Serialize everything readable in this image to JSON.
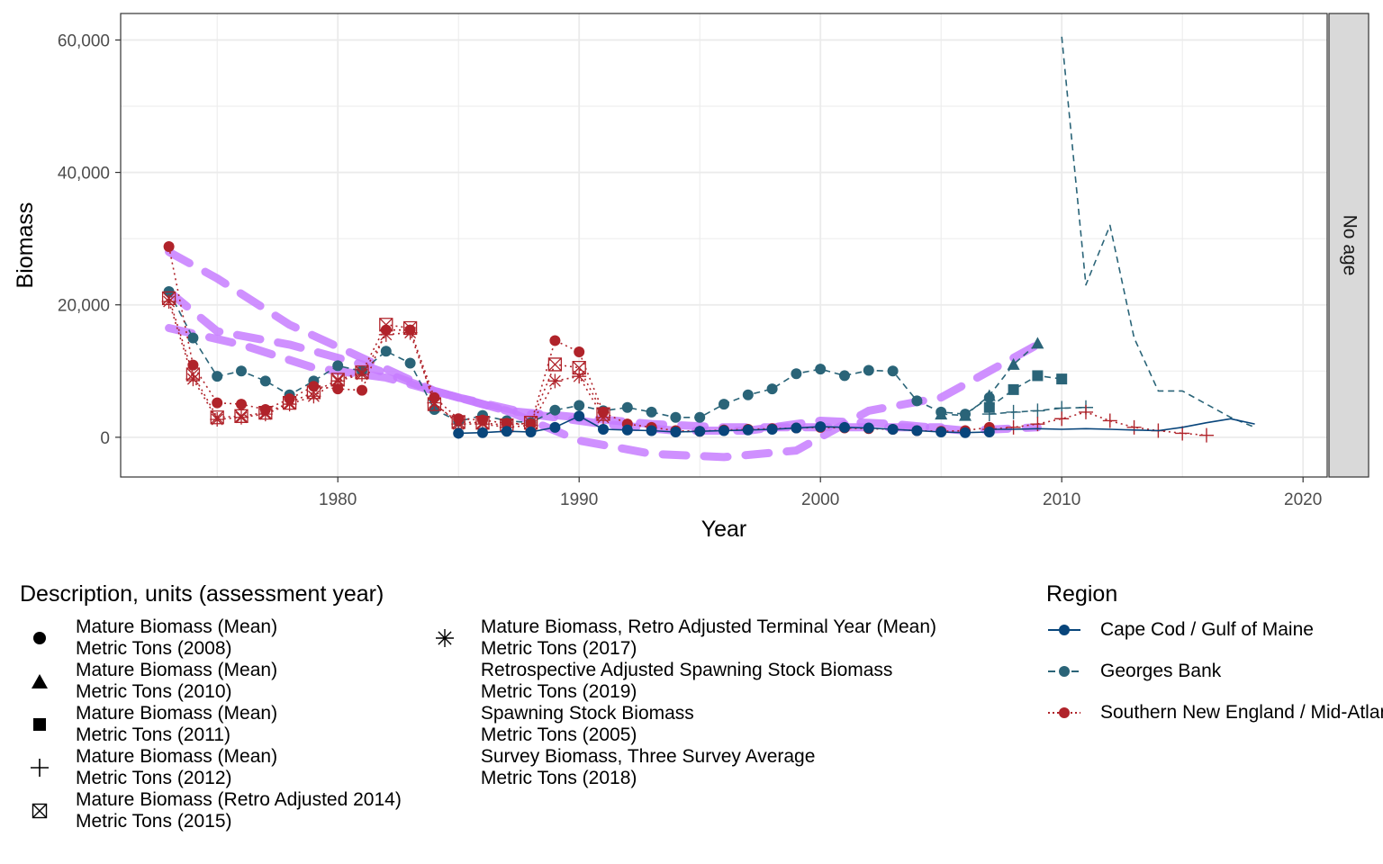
{
  "colors": {
    "cape_cod": "#08457b",
    "georges_bank": "#2a6478",
    "southern_ne": "#b0232a",
    "purple": "#c77cff",
    "purple_dark": "#7a3fbf",
    "grid": "#ebebeb",
    "strip_bg": "#d9d9d9"
  },
  "chart_data": {
    "type": "line",
    "xlabel": "Year",
    "ylabel": "Biomass",
    "xlim": [
      1971,
      2021
    ],
    "ylim": [
      -6000,
      64000
    ],
    "x_ticks": [
      1980,
      1990,
      2000,
      2010,
      2020
    ],
    "x_tick_labels": [
      "1980",
      "1990",
      "2000",
      "2010",
      "2020"
    ],
    "y_ticks": [
      0,
      20000,
      40000,
      60000
    ],
    "y_tick_labels": [
      "0",
      "20,000",
      "40,000",
      "60,000"
    ],
    "facet_label": "No age",
    "grid": true,
    "legend_position": "bottom",
    "series": [
      {
        "name": "Georges Bank",
        "description": "Mature Biomass (Mean) Metric Tons (2008)",
        "marker": "circle",
        "linestyle": "dashed",
        "x": [
          1973,
          1974,
          1975,
          1976,
          1977,
          1978,
          1979,
          1980,
          1981,
          1982,
          1983,
          1984,
          1985,
          1986,
          1987,
          1988,
          1989,
          1990,
          1991,
          1992,
          1993,
          1994,
          1995,
          1996,
          1997,
          1998,
          1999,
          2000,
          2001,
          2002,
          2003,
          2004,
          2005,
          2006,
          2007
        ],
        "y": [
          22000,
          15000,
          9200,
          10000,
          8500,
          6400,
          8500,
          10800,
          10000,
          13000,
          11200,
          4200,
          2400,
          3300,
          2500,
          2200,
          4100,
          4800,
          4000,
          4500,
          3800,
          3000,
          3000,
          5000,
          6400,
          7300,
          9600,
          10300,
          9300,
          10100,
          10000,
          5500,
          3800,
          3500,
          6000
        ]
      },
      {
        "name": "Georges Bank",
        "description": "Mature Biomass (Mean) Metric Tons (2010)",
        "marker": "triangle",
        "linestyle": "dashed",
        "x": [
          2005,
          2006,
          2007,
          2008,
          2009
        ],
        "y": [
          3500,
          3300,
          6300,
          11000,
          14200
        ]
      },
      {
        "name": "Georges Bank",
        "description": "Mature Biomass (Mean) Metric Tons (2011)",
        "marker": "square",
        "linestyle": "dashed",
        "x": [
          2007,
          2008,
          2009,
          2010
        ],
        "y": [
          4500,
          7200,
          9300,
          8800
        ]
      },
      {
        "name": "Georges Bank",
        "description": "Mature Biomass (Mean) Metric Tons (2012)",
        "marker": "plus",
        "linestyle": "dashed",
        "x": [
          2007,
          2008,
          2009,
          2010,
          2011
        ],
        "y": [
          3500,
          3800,
          4000,
          4400,
          4500
        ]
      },
      {
        "name": "Georges Bank",
        "description": "Survey Biomass, Three Survey Average Metric Tons (2018)",
        "marker": "none",
        "linestyle": "dashed",
        "x": [
          2010,
          2011,
          2012,
          2013,
          2014,
          2015,
          2016,
          2017,
          2018
        ],
        "y": [
          60500,
          23000,
          32000,
          15000,
          7000,
          7000,
          5000,
          3000,
          1500
        ]
      },
      {
        "name": "Southern New England / Mid-Atlantic",
        "description": "Mature Biomass (Mean) Metric Tons (2008)",
        "marker": "circle",
        "linestyle": "dotted",
        "x": [
          1973,
          1974,
          1975,
          1976,
          1977,
          1978,
          1979,
          1980,
          1981,
          1982,
          1983,
          1984,
          1985,
          1986,
          1987,
          1988,
          1989,
          1990,
          1991,
          1992,
          1993,
          1994,
          1995,
          1996,
          1997,
          1998,
          1999,
          2000,
          2001,
          2002,
          2003,
          2004,
          2005,
          2006,
          2007
        ],
        "y": [
          28800,
          10900,
          5200,
          5000,
          4200,
          5800,
          7700,
          7300,
          7100,
          16200,
          16200,
          6000,
          2800,
          2600,
          2100,
          2000,
          14600,
          12900,
          3800,
          2000,
          1500,
          1000,
          900,
          1100,
          1200,
          1300,
          1400,
          1500,
          1400,
          1300,
          1200,
          1000,
          900,
          1000,
          1500
        ]
      },
      {
        "name": "Southern New England / Mid-Atlantic",
        "description": "Mature Biomass (Retro Adjusted 2014) Metric Tons (2015)",
        "marker": "boxcross",
        "linestyle": "dotted",
        "x": [
          1973,
          1974,
          1975,
          1976,
          1977,
          1978,
          1979,
          1980,
          1981,
          1982,
          1983,
          1984,
          1985,
          1986,
          1987,
          1988,
          1989,
          1990,
          1991
        ],
        "y": [
          21000,
          9500,
          3000,
          3200,
          3700,
          5200,
          6800,
          8700,
          9800,
          17000,
          16500,
          5000,
          2300,
          2200,
          1800,
          2200,
          11000,
          10500,
          3500
        ]
      },
      {
        "name": "Southern New England / Mid-Atlantic",
        "description": "Mature Biomass, Retro Adjusted Terminal Year (Mean) Metric Tons (2017)",
        "marker": "asterisk",
        "linestyle": "dotted",
        "x": [
          1973,
          1974,
          1975,
          1976,
          1977,
          1978,
          1979,
          1980,
          1981,
          1982,
          1983,
          1984,
          1985,
          1986,
          1987,
          1988,
          1989,
          1990,
          1991
        ],
        "y": [
          20500,
          8800,
          2700,
          3000,
          3500,
          5000,
          6200,
          8500,
          9500,
          15500,
          15800,
          5200,
          2000,
          2000,
          1500,
          1800,
          8500,
          9200,
          3000
        ]
      },
      {
        "name": "Southern New England / Mid-Atlantic",
        "description": "Mature Biomass (Mean) Metric Tons (2012)",
        "marker": "plus",
        "linestyle": "dotted",
        "x": [
          2007,
          2008,
          2009,
          2010,
          2011,
          2012,
          2013,
          2014,
          2015,
          2016
        ],
        "y": [
          1200,
          1500,
          2000,
          2800,
          3800,
          2500,
          1500,
          1000,
          600,
          300
        ]
      },
      {
        "name": "Cape Cod / Gulf of Maine",
        "description": "Mature Biomass (Mean) Metric Tons (2008)",
        "marker": "circle",
        "linestyle": "solid",
        "x": [
          1985,
          1986,
          1987,
          1988,
          1989,
          1990,
          1991,
          1992,
          1993,
          1994,
          1995,
          1996,
          1997,
          1998,
          1999,
          2000,
          2001,
          2002,
          2003,
          2004,
          2005,
          2006,
          2007
        ],
        "y": [
          600,
          700,
          900,
          800,
          1500,
          3200,
          1200,
          1100,
          1000,
          800,
          900,
          1000,
          1100,
          1200,
          1400,
          1600,
          1500,
          1400,
          1200,
          1000,
          800,
          700,
          800
        ]
      },
      {
        "name": "Cape Cod / Gulf of Maine",
        "description": "Retrospective Adjusted Spawning Stock Biomass Metric Tons (2019)",
        "marker": "none",
        "linestyle": "solid",
        "x": [
          2007,
          2008,
          2009,
          2010,
          2011,
          2012,
          2013,
          2014,
          2015,
          2016,
          2017,
          2018
        ],
        "y": [
          1200,
          1200,
          1300,
          1200,
          1300,
          1200,
          1100,
          1000,
          1500,
          2200,
          2800,
          2000
        ]
      },
      {
        "name": "",
        "description": "Spawning Stock Biomass Metric Tons (2005)",
        "marker": "none",
        "linestyle": "purple-dashed",
        "x": [
          1973,
          1975,
          1978,
          1981,
          1984,
          1987,
          1990,
          1993,
          1996,
          1999,
          2002,
          2005
        ],
        "y": [
          22000,
          16000,
          14000,
          11000,
          7000,
          4000,
          3000,
          2000,
          1500,
          1500,
          1500,
          1500
        ]
      },
      {
        "name": "",
        "description": "Spawning Stock Biomass Metric Tons (2005)",
        "marker": "none",
        "linestyle": "purple-dashed",
        "x": [
          1973,
          1975,
          1978,
          1981,
          1984,
          1987,
          1990,
          1993,
          1996,
          1999,
          2002,
          2005,
          2009
        ],
        "y": [
          28000,
          24000,
          17000,
          12000,
          7000,
          4000,
          -500,
          -2500,
          -3000,
          -2000,
          4000,
          6000,
          14000
        ]
      },
      {
        "name": "",
        "description": "Spawning Stock Biomass Metric Tons (2005)",
        "marker": "none",
        "linestyle": "purple-dashed",
        "x": [
          1973,
          1976,
          1979,
          1982,
          1985,
          1988,
          1991,
          1994,
          1997,
          2000,
          2003,
          2006,
          2009
        ],
        "y": [
          16500,
          14000,
          10500,
          9000,
          6000,
          3500,
          2000,
          1000,
          1000,
          2500,
          2000,
          1000,
          1500
        ]
      }
    ]
  },
  "legend_shape": {
    "title": "Description, units (assessment year)",
    "items": [
      {
        "icon": "circle-icon",
        "line1": "Mature Biomass (Mean)",
        "line2": "Metric Tons (2008)"
      },
      {
        "icon": "triangle-icon",
        "line1": "Mature Biomass (Mean)",
        "line2": "Metric Tons (2010)"
      },
      {
        "icon": "square-icon",
        "line1": "Mature Biomass (Mean)",
        "line2": "Metric Tons (2011)"
      },
      {
        "icon": "plus-icon",
        "line1": "Mature Biomass (Mean)",
        "line2": "Metric Tons (2012)"
      },
      {
        "icon": "boxcross-icon",
        "line1": "Mature Biomass (Retro Adjusted 2014)",
        "line2": "Metric Tons (2015)"
      },
      {
        "icon": "asterisk-icon",
        "line1": "Mature Biomass, Retro Adjusted Terminal Year (Mean)",
        "line2": "Metric Tons (2017)"
      },
      {
        "icon": "none",
        "line1": "Retrospective Adjusted Spawning Stock Biomass",
        "line2": "Metric Tons (2019)"
      },
      {
        "icon": "none",
        "line1": "Spawning Stock Biomass",
        "line2": "Metric Tons (2005)"
      },
      {
        "icon": "none",
        "line1": "Survey Biomass, Three Survey Average",
        "line2": "Metric Tons (2018)"
      }
    ]
  },
  "legend_region": {
    "title": "Region",
    "items": [
      {
        "label": "Cape Cod / Gulf of Maine",
        "linestyle": "solid",
        "color": "#08457b"
      },
      {
        "label": "Georges Bank",
        "linestyle": "dashed",
        "color": "#2a6478"
      },
      {
        "label": "Southern New England / Mid-Atlantic",
        "linestyle": "dotted",
        "color": "#b0232a"
      }
    ]
  }
}
